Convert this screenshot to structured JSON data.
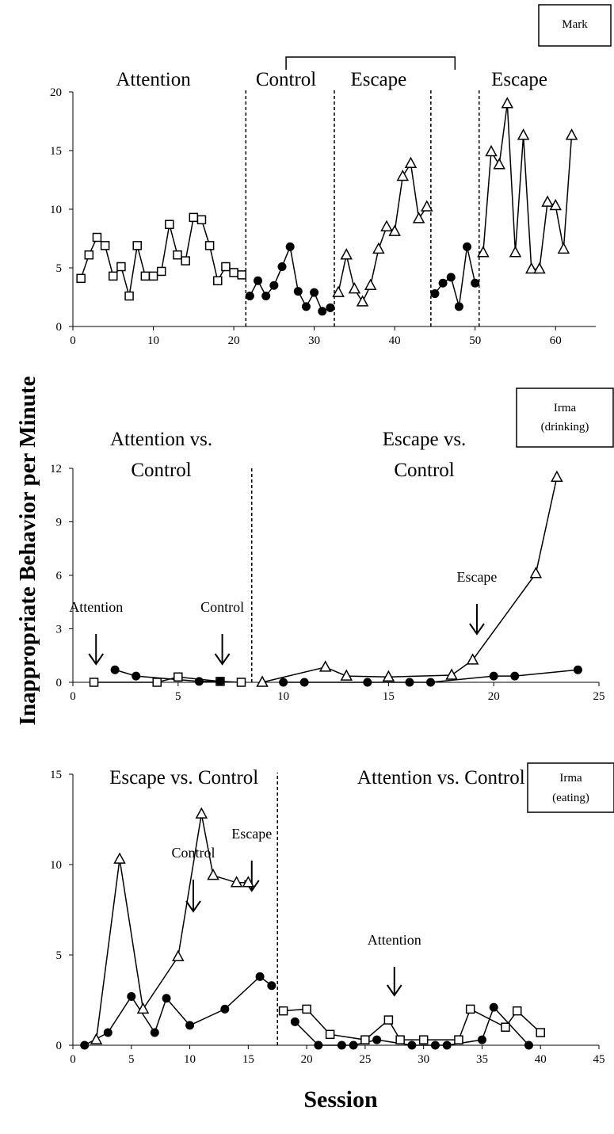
{
  "y_axis_label": "Inappropriate Behavior per Minute",
  "x_axis_label": "Session",
  "chart_data": [
    {
      "type": "line",
      "participant": "Mark",
      "xlim": [
        0,
        65
      ],
      "ylim": [
        0,
        20
      ],
      "xticks": [
        0,
        10,
        20,
        30,
        40,
        50,
        60
      ],
      "yticks": [
        0,
        5,
        10,
        15,
        20
      ],
      "phase_lines_x": [
        21.5,
        32.5,
        44.5,
        50.5
      ],
      "phase_labels": [
        {
          "text": "Attention",
          "x": 10
        },
        {
          "text": "Control",
          "x": 26.5
        },
        {
          "text": "Escape",
          "x": 38
        },
        {
          "text": "Escape",
          "x": 55.5
        }
      ],
      "bracket_x": [
        26.5,
        47.5
      ],
      "arrows": [],
      "series": [
        {
          "marker": "square",
          "x": [
            1,
            2,
            3,
            4,
            5,
            6,
            7,
            8,
            9,
            10,
            11,
            12,
            13,
            14,
            15,
            16,
            17,
            18,
            19,
            20,
            21
          ],
          "y": [
            4.1,
            6.1,
            7.6,
            6.9,
            4.3,
            5.1,
            2.6,
            6.9,
            4.3,
            4.3,
            4.7,
            8.7,
            6.1,
            5.6,
            9.3,
            9.1,
            6.9,
            3.9,
            5.1,
            4.6,
            4.4
          ]
        },
        {
          "marker": "circle",
          "x": [
            22,
            23,
            24,
            25,
            26,
            27,
            28,
            29,
            30,
            31,
            32
          ],
          "y": [
            2.6,
            3.9,
            2.6,
            3.5,
            5.1,
            6.8,
            3.0,
            1.7,
            2.9,
            1.3,
            1.6
          ]
        },
        {
          "marker": "triangle",
          "x": [
            33,
            34,
            35,
            36,
            37,
            38,
            39,
            40,
            41,
            42,
            43,
            44
          ],
          "y": [
            2.9,
            6.1,
            3.2,
            2.1,
            3.5,
            6.6,
            8.5,
            8.1,
            12.8,
            13.9,
            9.2,
            10.2
          ]
        },
        {
          "marker": "circle",
          "x": [
            45,
            46,
            47,
            48,
            49,
            50
          ],
          "y": [
            2.8,
            3.7,
            4.2,
            1.7,
            6.8,
            3.7
          ]
        },
        {
          "marker": "triangle",
          "x": [
            51,
            52,
            53,
            54,
            55,
            56,
            57,
            58,
            59,
            60,
            61,
            62
          ],
          "y": [
            6.3,
            14.9,
            13.8,
            19.0,
            6.3,
            16.3,
            4.9,
            4.9,
            10.6,
            10.3,
            6.6,
            16.3
          ]
        }
      ]
    },
    {
      "type": "line",
      "participant": "Irma\n(drinking)",
      "xlim": [
        0,
        25
      ],
      "ylim": [
        0,
        12
      ],
      "xticks": [
        0,
        5,
        10,
        15,
        20,
        25
      ],
      "yticks": [
        0,
        3,
        6,
        9,
        12
      ],
      "phase_lines_x": [
        8.5
      ],
      "phase_labels": [
        {
          "text": "Attention vs.\nControl",
          "x": 4.2
        },
        {
          "text": "Escape vs.\nControl",
          "x": 16.7
        }
      ],
      "arrows": [
        {
          "text": "Attention",
          "x": 1.1
        },
        {
          "text": "Control",
          "x": 7.1
        },
        {
          "text": "Escape",
          "x": 19.2
        }
      ],
      "series": [
        {
          "marker": "square",
          "x": [
            1,
            4,
            5,
            7,
            8
          ],
          "y": [
            0,
            0,
            0.3,
            0.05,
            0
          ]
        },
        {
          "marker": "circle",
          "x": [
            2,
            3,
            6,
            7
          ],
          "y": [
            0.7,
            0.35,
            0.05,
            0.05
          ]
        },
        {
          "marker": "triangle",
          "x": [
            9,
            12,
            13,
            15,
            18,
            19,
            22,
            23
          ],
          "y": [
            0,
            0.85,
            0.35,
            0.3,
            0.4,
            1.25,
            6.1,
            11.5
          ]
        },
        {
          "marker": "circle",
          "x": [
            10,
            11,
            14,
            16,
            17,
            20,
            21,
            24
          ],
          "y": [
            0,
            0,
            0,
            0,
            0,
            0.35,
            0.35,
            0.7
          ]
        }
      ]
    },
    {
      "type": "line",
      "participant": "Irma\n(eating)",
      "xlim": [
        0,
        45
      ],
      "ylim": [
        0,
        15
      ],
      "xticks": [
        0,
        5,
        10,
        15,
        20,
        25,
        30,
        35,
        40,
        45
      ],
      "yticks": [
        0,
        5,
        10,
        15
      ],
      "phase_lines_x": [
        17.5
      ],
      "phase_labels": [
        {
          "text": "Escape vs. Control",
          "x": 9.5
        },
        {
          "text": "Attention vs. Control",
          "x": 31.5
        }
      ],
      "arrows": [
        {
          "text": "Escape",
          "x": 15.3
        },
        {
          "text": "Control",
          "x": 10.3
        },
        {
          "text": "Attention",
          "x": 27.5
        }
      ],
      "series": [
        {
          "marker": "triangle",
          "x": [
            2,
            4,
            6,
            9,
            11,
            12,
            14,
            15
          ],
          "y": [
            0.3,
            10.3,
            2.0,
            4.9,
            12.8,
            9.4,
            9.0,
            9.0
          ]
        },
        {
          "marker": "circle",
          "x": [
            1,
            3,
            5,
            7,
            8,
            10,
            13,
            16,
            17
          ],
          "y": [
            0,
            0.7,
            2.7,
            0.7,
            2.6,
            1.1,
            2.0,
            3.8,
            3.3
          ]
        },
        {
          "marker": "square",
          "x": [
            18,
            20,
            22,
            25,
            27,
            28,
            30,
            33,
            34,
            37,
            38,
            40
          ],
          "y": [
            1.9,
            2.0,
            0.6,
            0.3,
            1.4,
            0.3,
            0.3,
            0.3,
            2.0,
            1.0,
            1.9,
            0.7
          ]
        },
        {
          "marker": "circle",
          "x": [
            19,
            21,
            23,
            24,
            26,
            29,
            31,
            32,
            35,
            36,
            39
          ],
          "y": [
            1.3,
            0,
            0,
            0,
            0.3,
            0,
            0,
            0,
            0.3,
            2.1,
            0
          ]
        }
      ]
    }
  ]
}
